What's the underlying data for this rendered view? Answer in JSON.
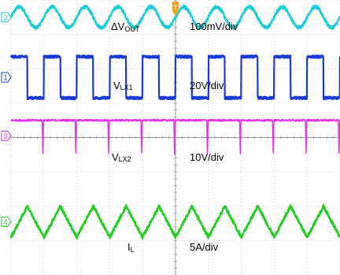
{
  "chart_data": {
    "type": "line",
    "grid": true,
    "time_divisions": 10,
    "vertical_divisions": 8,
    "traces": [
      {
        "channel": "2",
        "label_main": "ΔV",
        "label_sub": "OUT",
        "scale": "100mV/div",
        "color": "#1ecbd8",
        "waveform": "sine",
        "cycles": 10,
        "level_div": 7.5,
        "amplitude_div": 0.3,
        "noise_div": 0.05
      },
      {
        "channel": "1",
        "label_main": "V",
        "label_sub": "LX1",
        "scale": "20V/div",
        "color": "#1a3ad6",
        "waveform": "square",
        "cycles": 10,
        "high_div": 6.35,
        "low_div": 5.15,
        "duty": 0.5,
        "noise_div": 0.04
      },
      {
        "channel": "3",
        "label_main": "V",
        "label_sub": "LX2",
        "scale": "10V/div",
        "color": "#e62ee6",
        "waveform": "pulse",
        "cycles": 10,
        "high_div": 4.5,
        "low_div": 3.45,
        "noise_div": 0.03
      },
      {
        "channel": "4",
        "label_main": "I",
        "label_sub": "L",
        "scale": "5A/div",
        "color": "#22cc22",
        "waveform": "triangle",
        "cycles": 10,
        "level_div": 1.55,
        "amplitude_div": 0.45,
        "noise_div": 0.05
      }
    ]
  }
}
